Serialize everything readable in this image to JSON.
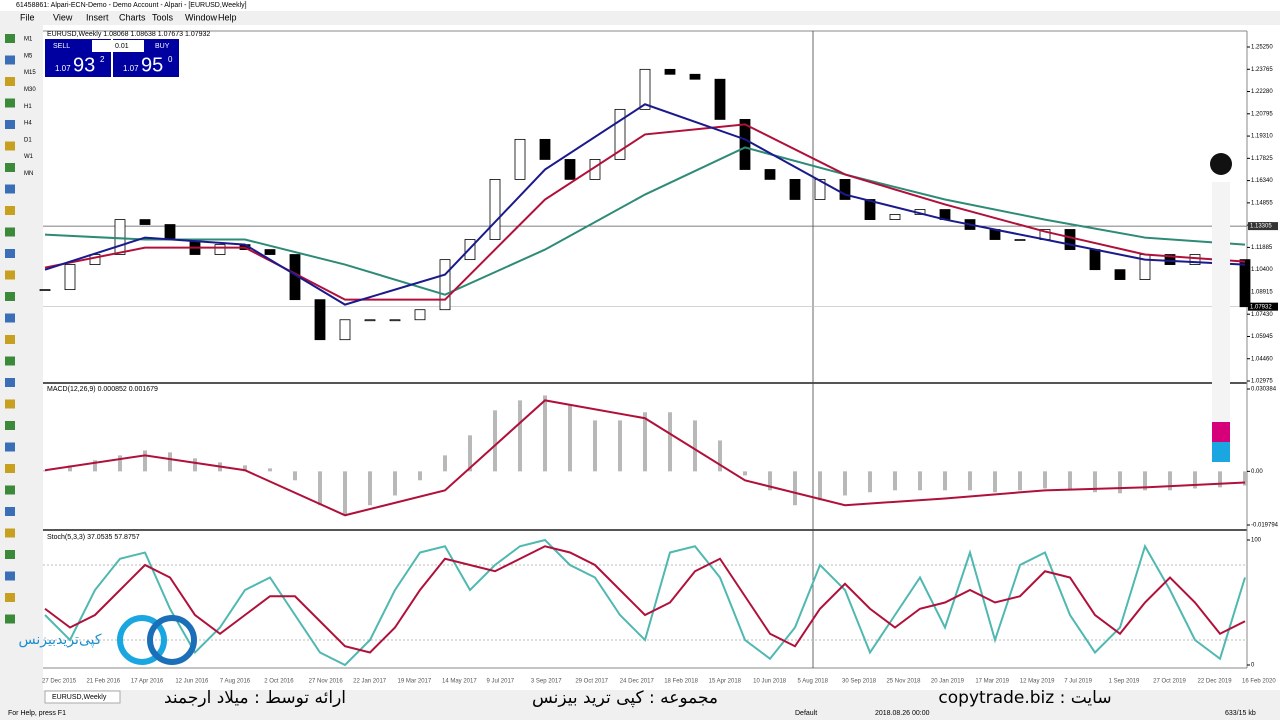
{
  "window": {
    "title": "61458861: Alpari-ECN-Demo - Demo Account - Alpari - [EURUSD,Weekly]",
    "menu": [
      "File",
      "View",
      "Insert",
      "Charts",
      "Tools",
      "Window",
      "Help"
    ]
  },
  "timeframes": [
    "M1",
    "M5",
    "M15",
    "M30",
    "H1",
    "H4",
    "D1",
    "W1",
    "MN"
  ],
  "trade_panel": {
    "sell": "SELL",
    "buy": "BUY",
    "lots": "0.01",
    "bid_big": "1.07",
    "bid": "93",
    "bid_pip": "2",
    "ask_big": "1.07",
    "ask": "95",
    "ask_pip": "0"
  },
  "price_panel": {
    "header": "EURUSD,Weekly 1.08068 1.08638 1.07673 1.07932",
    "ylim": [
      1.02975,
      1.2525
    ],
    "ticks": [
      {
        "value": 1.2525,
        "label": "1.25250"
      },
      {
        "value": 1.23765,
        "label": "1.23765"
      },
      {
        "value": 1.2228,
        "label": "1.22280"
      },
      {
        "value": 1.20795,
        "label": "1.20795"
      },
      {
        "value": 1.1931,
        "label": "1.19310"
      },
      {
        "value": 1.17825,
        "label": "1.17825"
      },
      {
        "value": 1.1634,
        "label": "1.16340"
      },
      {
        "value": 1.14855,
        "label": "1.14855"
      },
      {
        "value": 1.1337,
        "label": "1.13370"
      },
      {
        "value": 1.11885,
        "label": "1.11885"
      },
      {
        "value": 1.104,
        "label": "1.10400"
      },
      {
        "value": 1.08915,
        "label": "1.08915"
      },
      {
        "value": 1.0743,
        "label": "1.07430"
      },
      {
        "value": 1.05945,
        "label": "1.05945"
      },
      {
        "value": 1.0446,
        "label": "1.04460"
      },
      {
        "value": 1.02975,
        "label": "1.02975"
      }
    ],
    "markers": [
      {
        "value": 1.13305,
        "label": "1.13305"
      },
      {
        "value": 1.07932,
        "label": "1.07932"
      }
    ],
    "close": [
      1.0907,
      1.1074,
      1.1141,
      1.1374,
      1.1341,
      1.1241,
      1.1141,
      1.1207,
      1.1174,
      1.1141,
      1.084,
      1.0573,
      1.0706,
      1.0706,
      1.0706,
      1.0773,
      1.1107,
      1.1241,
      1.1642,
      1.1909,
      1.1775,
      1.1642,
      1.1775,
      1.2109,
      1.2376,
      1.2343,
      1.231,
      1.2042,
      1.1708,
      1.1642,
      1.1508,
      1.1642,
      1.1508,
      1.1374,
      1.1408,
      1.1441,
      1.1374,
      1.1308,
      1.1241,
      1.1241,
      1.1308,
      1.1174,
      1.104,
      1.0974,
      1.1141,
      1.1074,
      1.1141,
      1.1107,
      1.0793
    ],
    "ma_fast": [
      1.104,
      1.1254,
      1.1207,
      1.0807,
      1.1007,
      1.1708,
      1.2143,
      1.1909,
      1.1541,
      1.1374,
      1.1241,
      1.1107,
      1.1074
    ],
    "ma_mid": [
      1.1054,
      1.1187,
      1.1187,
      1.084,
      1.084,
      1.1508,
      1.1942,
      1.2009,
      1.1675,
      1.1475,
      1.1294,
      1.1141,
      1.1094
    ],
    "ma_slow": [
      1.1274,
      1.1241,
      1.1241,
      1.1074,
      1.0873,
      1.1174,
      1.1541,
      1.1855,
      1.1675,
      1.1508,
      1.1374,
      1.1254,
      1.1207
    ]
  },
  "macd_panel": {
    "label": "MACD(12,26,9) 0.000852 0.001679",
    "ylim": [
      -0.019794,
      0.030384
    ],
    "ticks": [
      {
        "value": 0.030384,
        "label": "0.030384"
      },
      {
        "value": 0,
        "label": "0.00"
      },
      {
        "value": -0.019794,
        "label": "-0.019794"
      }
    ],
    "histogram": [
      0.0004,
      0.0022,
      0.0041,
      0.0059,
      0.0077,
      0.007,
      0.0048,
      0.0033,
      0.0022,
      0.0011,
      -0.0033,
      -0.0125,
      -0.0162,
      -0.0125,
      -0.0089,
      -0.0033,
      0.0059,
      0.0133,
      0.0225,
      0.0262,
      0.028,
      0.0244,
      0.0188,
      0.0188,
      0.0218,
      0.0218,
      0.0188,
      0.0114,
      -0.0015,
      -0.007,
      -0.0125,
      -0.0107,
      -0.0089,
      -0.0077,
      -0.007,
      -0.007,
      -0.007,
      -0.007,
      -0.0077,
      -0.007,
      -0.0063,
      -0.007,
      -0.0077,
      -0.0081,
      -0.007,
      -0.007,
      -0.0063,
      -0.0059,
      -0.0052
    ],
    "signal": [
      0.0004,
      0.0059,
      0.0004,
      -0.0162,
      -0.007,
      0.0262,
      0.0196,
      -0.0033,
      -0.0125,
      -0.01,
      -0.007,
      -0.0059,
      -0.0041
    ]
  },
  "stoch_panel": {
    "label": "Stoch(5,3,3) 37.0535 57.8757",
    "ylim": [
      0,
      100
    ],
    "ticks": [
      100,
      0
    ],
    "levels": [
      80,
      20
    ],
    "main": [
      40,
      20,
      60,
      85,
      90,
      45,
      10,
      30,
      60,
      70,
      40,
      10,
      0,
      20,
      60,
      90,
      95,
      60,
      80,
      95,
      100,
      80,
      70,
      40,
      20,
      90,
      95,
      70,
      20,
      5,
      30,
      80,
      60,
      10,
      40,
      70,
      30,
      90,
      20,
      80,
      90,
      40,
      10,
      30,
      95,
      60,
      20,
      5,
      70
    ],
    "signal": [
      45,
      30,
      40,
      60,
      80,
      70,
      40,
      25,
      40,
      55,
      55,
      35,
      15,
      10,
      30,
      60,
      85,
      80,
      75,
      85,
      95,
      90,
      80,
      60,
      40,
      50,
      75,
      85,
      55,
      25,
      15,
      45,
      65,
      45,
      30,
      45,
      50,
      60,
      50,
      55,
      75,
      70,
      40,
      25,
      50,
      70,
      50,
      25,
      35
    ]
  },
  "dates": [
    "27 Dec 2015",
    "21 Feb 2016",
    "17 Apr 2016",
    "12 Jun 2016",
    "7 Aug 2016",
    "2 Oct 2016",
    "27 Nov 2016",
    "22 Jan 2017",
    "19 Mar 2017",
    "14 May 2017",
    "9 Jul 2017",
    "3 Sep 2017",
    "29 Oct 2017",
    "24 Dec 2017",
    "18 Feb 2018",
    "15 Apr 2018",
    "10 Jun 2018",
    "5 Aug 2018",
    "30 Sep 2018",
    "25 Nov 2018",
    "20 Jan 2019",
    "17 Mar 2019",
    "12 May 2019",
    "7 Jul 2019",
    "1 Sep 2019",
    "27 Oct 2019",
    "22 Dec 2019",
    "16 Feb 2020"
  ],
  "tab": "EURUSD,Weekly",
  "status": {
    "help": "For Help, press F1",
    "profile": "Default",
    "crosshair": "2018.08.26 00:00",
    "size": "633/15 kb"
  },
  "overlay": {
    "logo": "کپی‌تریدبیزنس",
    "site": "سایت : copytrade.biz",
    "collection": "مجموعه : کپی ترید بیزنس",
    "author": "ارائه توسط : میلاد ارجمند"
  }
}
